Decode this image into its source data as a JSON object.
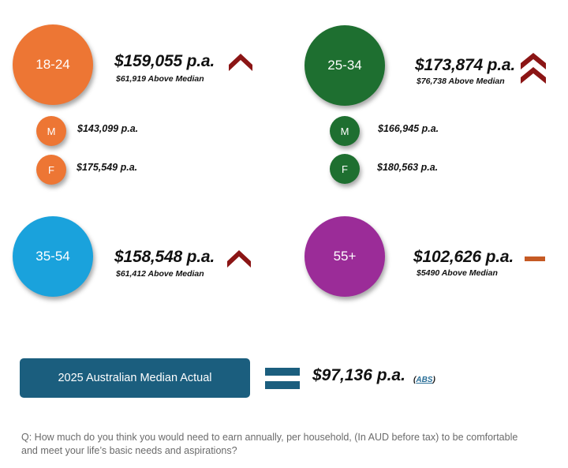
{
  "colors": {
    "orange": "#ED7634",
    "green": "#1E6F30",
    "blue": "#1AA2DC",
    "purple": "#9B2C98",
    "chevron": "#8B1515",
    "dash": "#C55A24",
    "median_box": "#1B5E7E"
  },
  "groups": {
    "g1824": {
      "age": "18-24",
      "amount": "$159,055 p.a.",
      "above": "$61,919 Above Median",
      "trend": "chevron-up-single-icon",
      "male_label": "M",
      "male_amount": "$143,099 p.a.",
      "female_label": "F",
      "female_amount": "$175,549 p.a."
    },
    "g2534": {
      "age": "25-34",
      "amount": "$173,874 p.a.",
      "above": "$76,738 Above Median",
      "trend": "chevron-up-double-icon",
      "male_label": "M",
      "male_amount": "$166,945 p.a.",
      "female_label": "F",
      "female_amount": "$180,563 p.a."
    },
    "g3554": {
      "age": "35-54",
      "amount": "$158,548 p.a.",
      "above": "$61,412 Above Median",
      "trend": "chevron-up-single-icon"
    },
    "g55": {
      "age": "55+",
      "amount": "$102,626 p.a.",
      "above": "$5490 Above Median",
      "trend": "dash-icon"
    }
  },
  "median": {
    "label": "2025 Australian Median Actual",
    "value": "$97,136 p.a.",
    "source_open": "(",
    "source": "ABS",
    "source_close": ")"
  },
  "question": "Q: How much do you think you would need to earn annually, per household, (In AUD before tax) to be comfortable and meet your life’s basic needs and aspirations?"
}
